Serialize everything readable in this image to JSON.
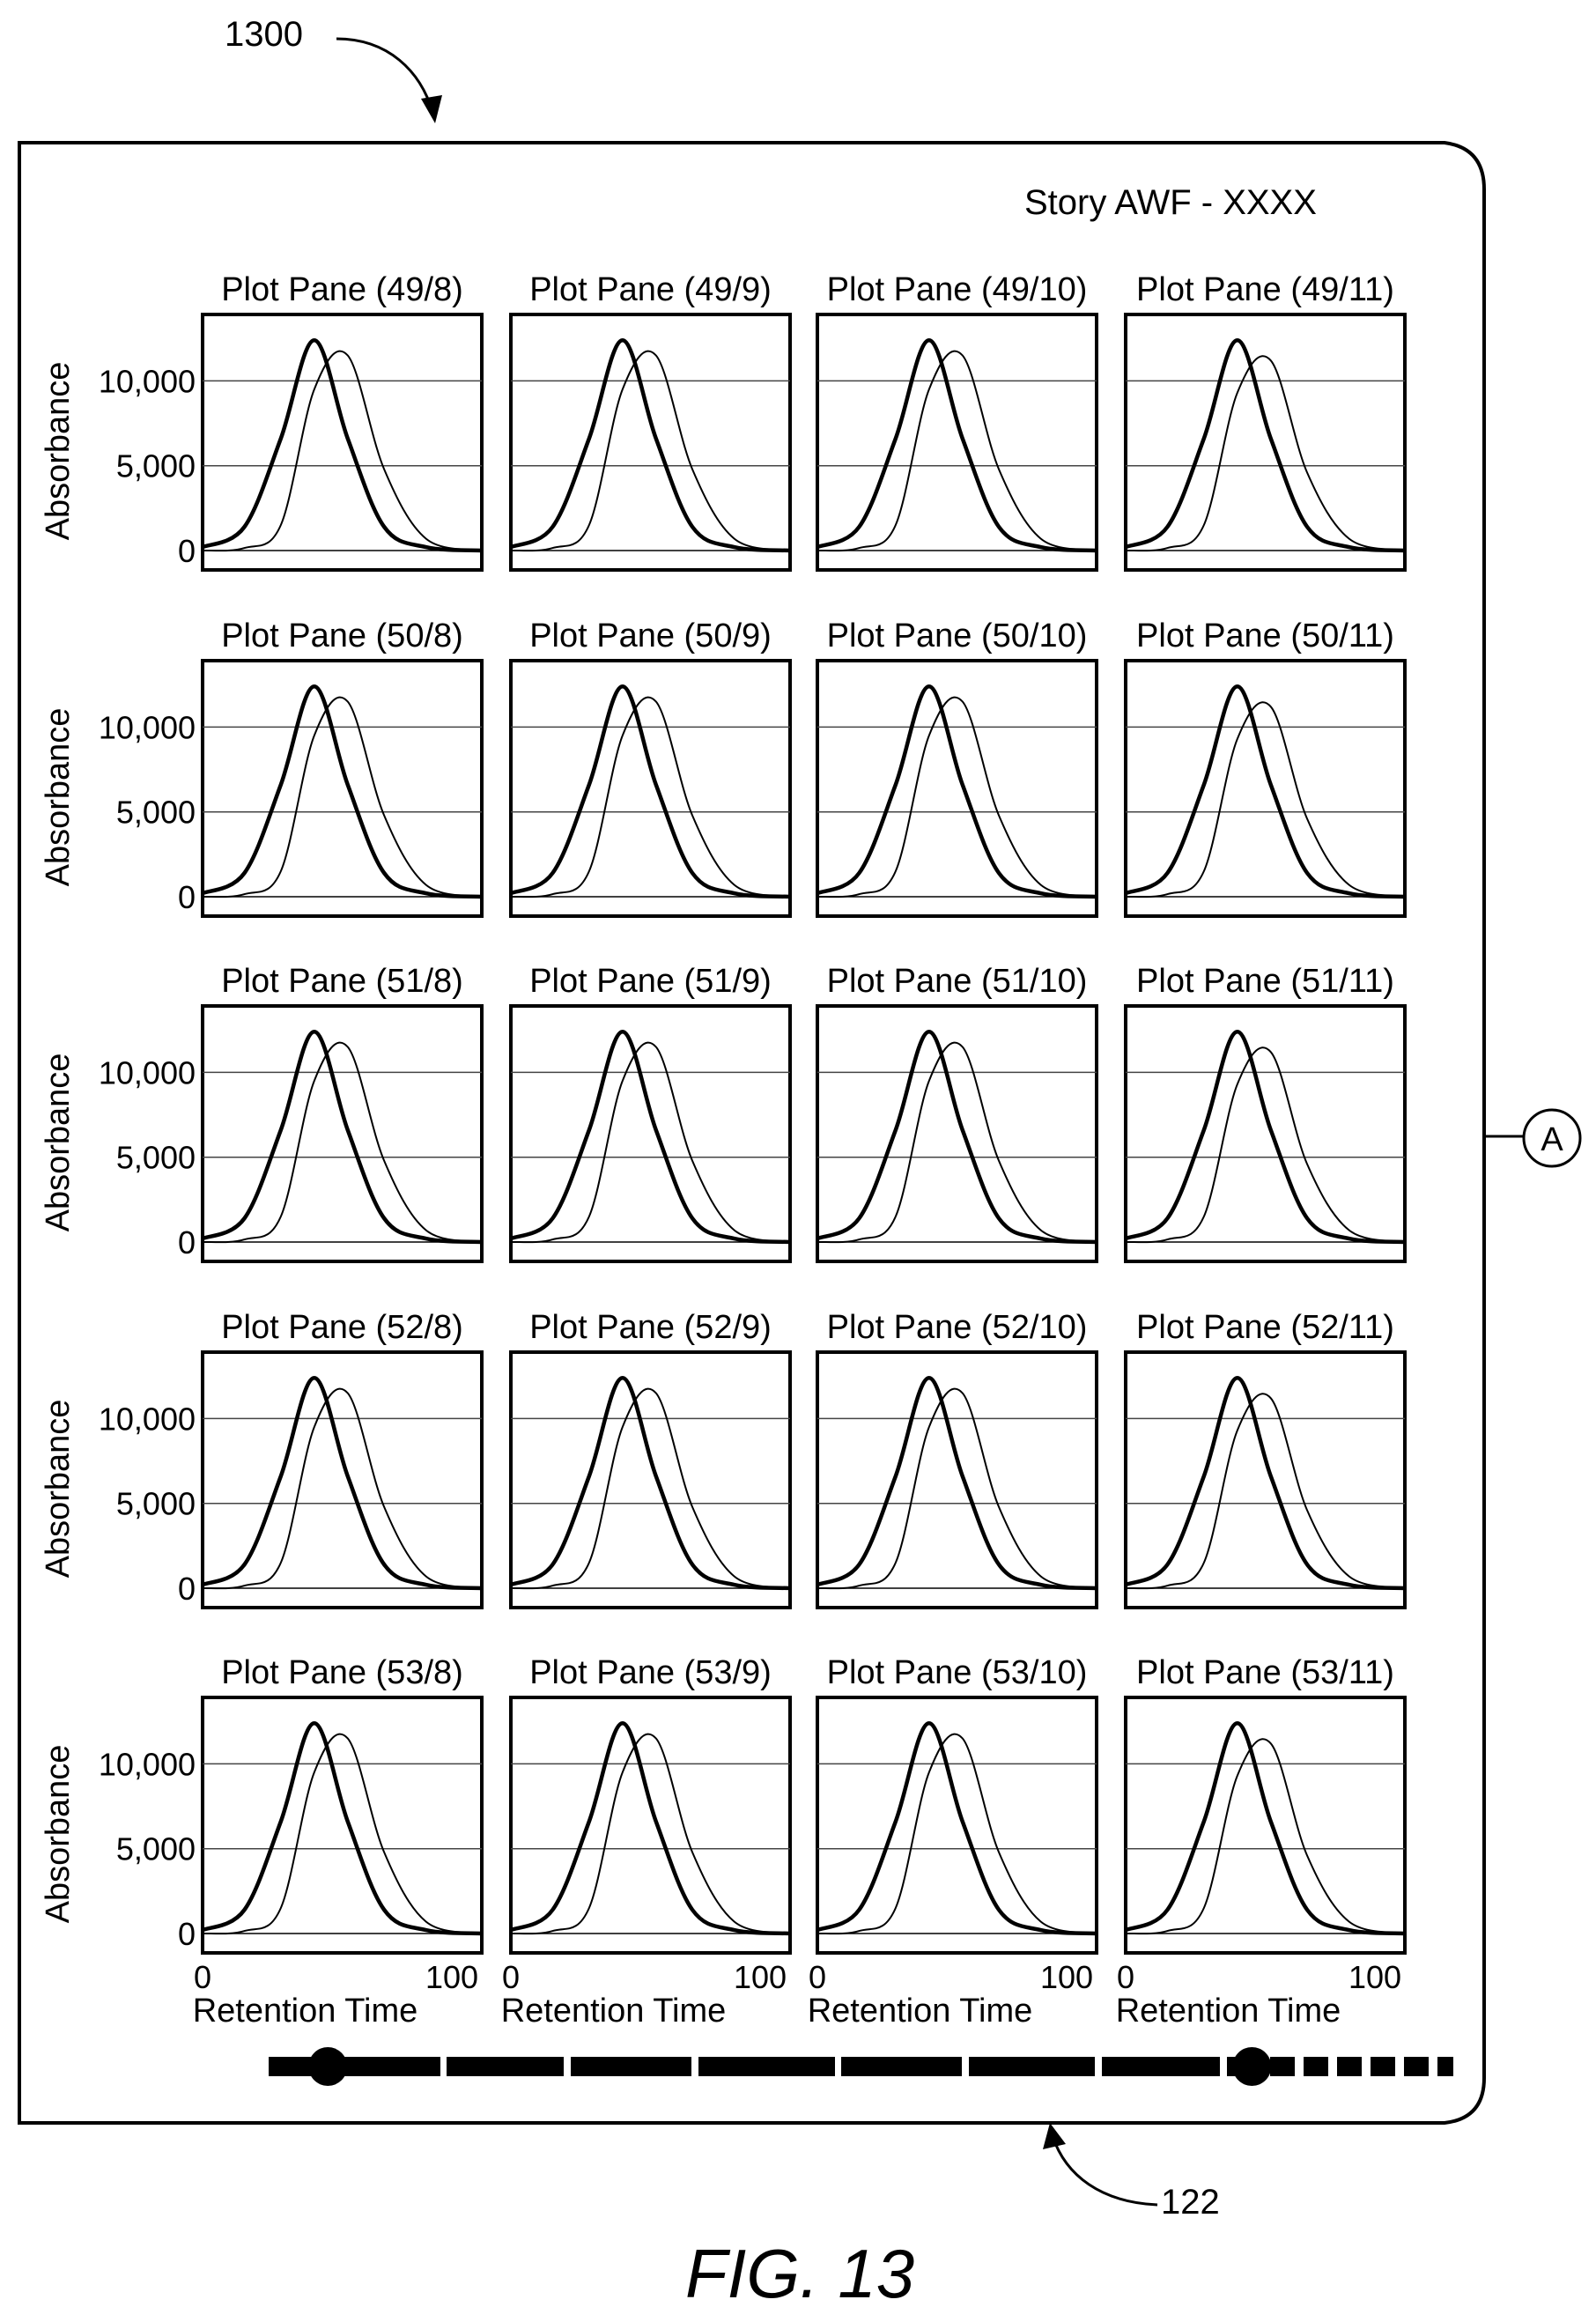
{
  "figure_ref": "1300",
  "figure_caption": "FIG. 13",
  "story_title": "Story AWF - XXXX",
  "connector_label": "A",
  "slider_ref": "122",
  "chart_data": {
    "type": "line",
    "layout": "grid of plot panes, 5 rows x 4 columns",
    "ylabel": "Absorbance",
    "xlabel": "Retention Time",
    "xlim": [
      0,
      100
    ],
    "ylim": [
      0,
      13500
    ],
    "x_ticks": [
      "0",
      "100"
    ],
    "y_ticks": [
      "0",
      "5,000",
      "10,000"
    ],
    "y_tick_values": [
      0,
      5000,
      10000
    ],
    "grid": "horizontal lines at 5,000 and 10,000",
    "series_styles": [
      "thick line",
      "thin line"
    ],
    "panes": [
      {
        "title": "Plot Pane (49/8)",
        "series": [
          {
            "values": [
              200,
              1400,
              6600,
              12400,
              6600,
              1400,
              200,
              0
            ]
          },
          {
            "values": [
              0,
              150,
              1500,
              9500,
              11500,
              4800,
              700,
              0
            ]
          }
        ]
      },
      {
        "title": "Plot Pane (49/9)",
        "series": [
          {
            "values": [
              200,
              1400,
              6600,
              12400,
              6600,
              1400,
              200,
              0
            ]
          },
          {
            "values": [
              0,
              150,
              1500,
              9500,
              11500,
              4800,
              700,
              0
            ]
          }
        ]
      },
      {
        "title": "Plot Pane (49/10)",
        "series": [
          {
            "values": [
              200,
              1400,
              6600,
              12400,
              6600,
              1400,
              200,
              0
            ]
          },
          {
            "values": [
              0,
              150,
              1500,
              9500,
              11500,
              4800,
              700,
              0
            ]
          }
        ]
      },
      {
        "title": "Plot Pane (49/11)",
        "series": [
          {
            "values": [
              200,
              1400,
              6600,
              12400,
              6600,
              1400,
              200,
              0
            ]
          },
          {
            "values": [
              0,
              150,
              1500,
              9300,
              11200,
              4600,
              700,
              0
            ]
          }
        ]
      },
      {
        "title": "Plot Pane (50/8)",
        "series": [
          {
            "values": [
              200,
              1400,
              6600,
              12400,
              6600,
              1400,
              200,
              0
            ]
          },
          {
            "values": [
              0,
              150,
              1500,
              9500,
              11500,
              4800,
              700,
              0
            ]
          }
        ]
      },
      {
        "title": "Plot Pane (50/9)",
        "series": [
          {
            "values": [
              200,
              1400,
              6600,
              12400,
              6600,
              1400,
              200,
              0
            ]
          },
          {
            "values": [
              0,
              150,
              1500,
              9500,
              11500,
              4800,
              700,
              0
            ]
          }
        ]
      },
      {
        "title": "Plot Pane (50/10)",
        "series": [
          {
            "values": [
              200,
              1400,
              6600,
              12400,
              6600,
              1400,
              200,
              0
            ]
          },
          {
            "values": [
              0,
              150,
              1500,
              9500,
              11500,
              4800,
              700,
              0
            ]
          }
        ]
      },
      {
        "title": "Plot Pane (50/11)",
        "series": [
          {
            "values": [
              200,
              1400,
              6600,
              12400,
              6600,
              1400,
              200,
              0
            ]
          },
          {
            "values": [
              0,
              150,
              1500,
              9300,
              11200,
              4600,
              700,
              0
            ]
          }
        ]
      },
      {
        "title": "Plot Pane (51/8)",
        "series": [
          {
            "values": [
              200,
              1400,
              6600,
              12400,
              6600,
              1400,
              200,
              0
            ]
          },
          {
            "values": [
              0,
              150,
              1500,
              9500,
              11500,
              4800,
              700,
              0
            ]
          }
        ]
      },
      {
        "title": "Plot Pane (51/9)",
        "series": [
          {
            "values": [
              200,
              1400,
              6600,
              12400,
              6600,
              1400,
              200,
              0
            ]
          },
          {
            "values": [
              0,
              150,
              1500,
              9500,
              11500,
              4800,
              700,
              0
            ]
          }
        ]
      },
      {
        "title": "Plot Pane (51/10)",
        "series": [
          {
            "values": [
              200,
              1400,
              6600,
              12400,
              6600,
              1400,
              200,
              0
            ]
          },
          {
            "values": [
              0,
              150,
              1500,
              9500,
              11500,
              4800,
              700,
              0
            ]
          }
        ]
      },
      {
        "title": "Plot Pane (51/11)",
        "series": [
          {
            "values": [
              200,
              1400,
              6600,
              12400,
              6600,
              1400,
              200,
              0
            ]
          },
          {
            "values": [
              0,
              150,
              1500,
              9300,
              11200,
              4600,
              700,
              0
            ]
          }
        ]
      },
      {
        "title": "Plot Pane (52/8)",
        "series": [
          {
            "values": [
              200,
              1400,
              6600,
              12400,
              6600,
              1400,
              200,
              0
            ]
          },
          {
            "values": [
              0,
              150,
              1500,
              9500,
              11500,
              4800,
              700,
              0
            ]
          }
        ]
      },
      {
        "title": "Plot Pane (52/9)",
        "series": [
          {
            "values": [
              200,
              1400,
              6600,
              12400,
              6600,
              1400,
              200,
              0
            ]
          },
          {
            "values": [
              0,
              150,
              1500,
              9500,
              11500,
              4800,
              700,
              0
            ]
          }
        ]
      },
      {
        "title": "Plot Pane (52/10)",
        "series": [
          {
            "values": [
              200,
              1400,
              6600,
              12400,
              6600,
              1400,
              200,
              0
            ]
          },
          {
            "values": [
              0,
              150,
              1500,
              9500,
              11500,
              4800,
              700,
              0
            ]
          }
        ]
      },
      {
        "title": "Plot Pane (52/11)",
        "series": [
          {
            "values": [
              200,
              1400,
              6600,
              12400,
              6600,
              1400,
              200,
              0
            ]
          },
          {
            "values": [
              0,
              150,
              1500,
              9300,
              11200,
              4600,
              700,
              0
            ]
          }
        ]
      },
      {
        "title": "Plot Pane (53/8)",
        "series": [
          {
            "values": [
              200,
              1400,
              6600,
              12400,
              6600,
              1400,
              200,
              0
            ]
          },
          {
            "values": [
              0,
              150,
              1500,
              9500,
              11500,
              4800,
              700,
              0
            ]
          }
        ]
      },
      {
        "title": "Plot Pane (53/9)",
        "series": [
          {
            "values": [
              200,
              1400,
              6600,
              12400,
              6600,
              1400,
              200,
              0
            ]
          },
          {
            "values": [
              0,
              150,
              1500,
              9500,
              11500,
              4800,
              700,
              0
            ]
          }
        ]
      },
      {
        "title": "Plot Pane (53/10)",
        "series": [
          {
            "values": [
              200,
              1400,
              6600,
              12400,
              6600,
              1400,
              200,
              0
            ]
          },
          {
            "values": [
              0,
              150,
              1500,
              9500,
              11500,
              4800,
              700,
              0
            ]
          }
        ]
      },
      {
        "title": "Plot Pane (53/11)",
        "series": [
          {
            "values": [
              200,
              1400,
              6600,
              12400,
              6600,
              1400,
              200,
              0
            ]
          },
          {
            "values": [
              0,
              150,
              1500,
              9300,
              11200,
              4600,
              700,
              0
            ]
          }
        ]
      }
    ],
    "x_points": [
      0,
      15,
      28,
      40,
      52,
      65,
      80,
      100
    ]
  },
  "timeline_slider": {
    "handle_positions": [
      0.05,
      0.83
    ]
  }
}
